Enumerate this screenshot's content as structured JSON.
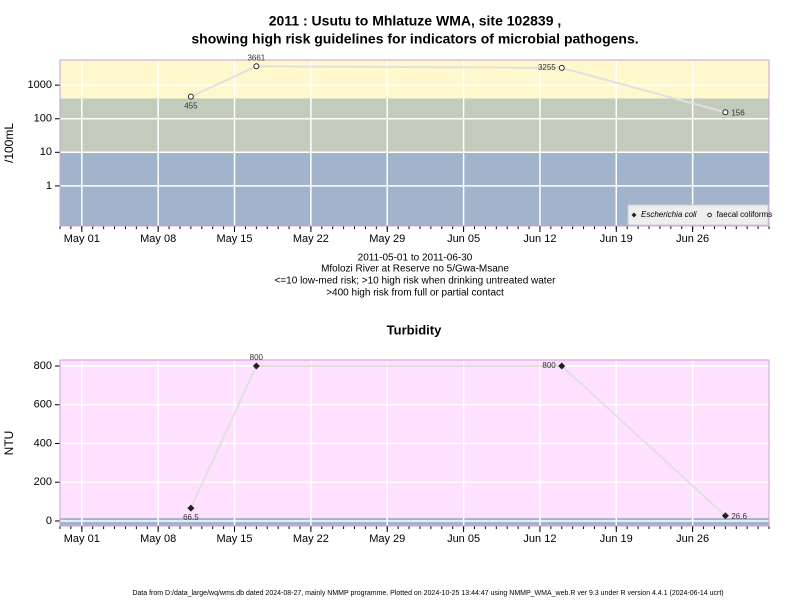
{
  "chart_data": [
    {
      "type": "line",
      "title": [
        "2011 : Usutu to Mhlatuze WMA, site 102839 ,",
        "showing high risk guidelines for indicators of microbial pathogens."
      ],
      "subtitle": [
        "2011-05-01 to 2011-06-30",
        "Mfolozi River at Reserve no 5/Gwa-Msane",
        "<=10 low-med risk; >10 high risk when drinking untreated water",
        ">400 high risk from full or partial contact"
      ],
      "y_label": "/100mL",
      "log_y": true,
      "x": [
        "2011-05-11",
        "2011-05-17",
        "2011-06-14",
        "2011-06-29"
      ],
      "series": [
        {
          "name": "Escherichia coli",
          "color": "#222222",
          "marker": "diamond",
          "values": [
            null,
            null,
            null,
            null
          ]
        },
        {
          "name": "faecal coliforms",
          "color": "#222222",
          "marker": "circle",
          "values": [
            455,
            3661,
            3255,
            156
          ]
        }
      ],
      "xlim": [
        "2011-04-29",
        "2011-07-03"
      ],
      "xticks": [
        {
          "value": "2011-05-01",
          "label": "May 01"
        },
        {
          "value": "2011-05-08",
          "label": "May 08"
        },
        {
          "value": "2011-05-15",
          "label": "May 15"
        },
        {
          "value": "2011-05-22",
          "label": "May 22"
        },
        {
          "value": "2011-05-29",
          "label": "May 29"
        },
        {
          "value": "2011-06-05",
          "label": "Jun 05"
        },
        {
          "value": "2011-06-12",
          "label": "Jun 12"
        },
        {
          "value": "2011-06-19",
          "label": "Jun 19"
        },
        {
          "value": "2011-06-26",
          "label": "Jun 26"
        }
      ],
      "ylim": [
        0.064,
        5600
      ],
      "yticks": [
        1,
        10,
        100,
        1000
      ],
      "bands": [
        {
          "to": 10,
          "color": "#a2b3cc"
        },
        {
          "from": 10,
          "to": 400,
          "color": "#c3cbbd"
        },
        {
          "from": 400,
          "color": "#fff8cc"
        }
      ],
      "grid": true,
      "legend": "bottom-right"
    },
    {
      "type": "line",
      "title": "Turbidity",
      "y_label": "NTU",
      "x": [
        "2011-05-11",
        "2011-05-17",
        "2011-06-14",
        "2011-06-29"
      ],
      "series": [
        {
          "color": "#222222",
          "marker": "diamond-filled",
          "values": [
            66.5,
            800,
            800,
            26.6
          ]
        }
      ],
      "xlim": [
        "2011-04-29",
        "2011-07-03"
      ],
      "xticks": [
        {
          "value": "2011-05-01",
          "label": "May 01"
        },
        {
          "value": "2011-05-08",
          "label": "May 08"
        },
        {
          "value": "2011-05-15",
          "label": "May 15"
        },
        {
          "value": "2011-05-22",
          "label": "May 22"
        },
        {
          "value": "2011-05-29",
          "label": "May 29"
        },
        {
          "value": "2011-06-05",
          "label": "Jun 05"
        },
        {
          "value": "2011-06-12",
          "label": "Jun 12"
        },
        {
          "value": "2011-06-19",
          "label": "Jun 19"
        },
        {
          "value": "2011-06-26",
          "label": "Jun 26"
        }
      ],
      "ylim": [
        -26,
        831
      ],
      "yticks": [
        0,
        200,
        400,
        600,
        800
      ],
      "bands": [
        {
          "to": 15,
          "color": "#a2b3cc"
        },
        {
          "from": 15,
          "color": "#ffe0ff"
        }
      ],
      "grid": true
    }
  ],
  "footer": "Data from D:/data_large/wq/wms.db dated 2024-08-27, mainly NMMP programme. Plotted on 2024-10-25 13:44:47 using NMMP_WMA_web.R ver 9.3 under R version 4.4.1 (2024-06-14 ucrt)"
}
